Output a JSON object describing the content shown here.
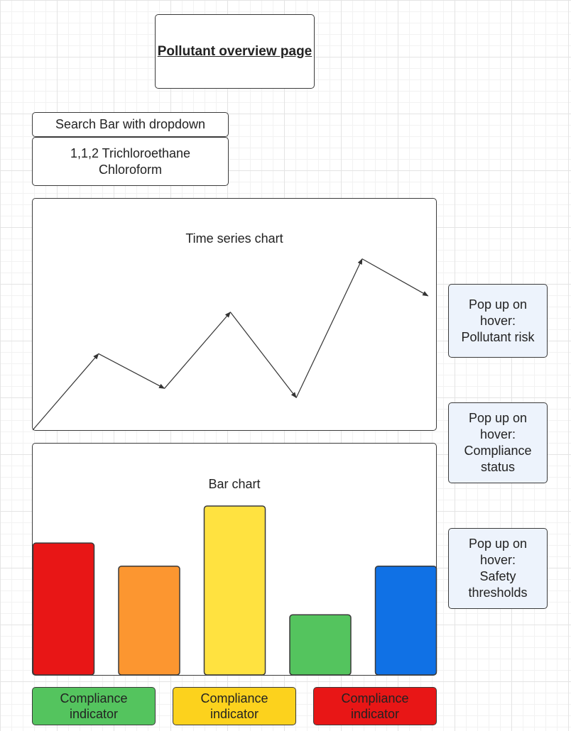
{
  "page_title": "Pollutant overview page",
  "search": {
    "label": "Search Bar with dropdown",
    "options": [
      "1,1,2 Trichloroethane",
      "Chloroform"
    ]
  },
  "time_series": {
    "title": "Time series chart"
  },
  "bar_chart": {
    "title": "Bar chart"
  },
  "popups": [
    {
      "lines": [
        "Pop up on",
        "hover:",
        "Pollutant risk"
      ]
    },
    {
      "lines": [
        "Pop up on",
        "hover:",
        "Compliance",
        "status"
      ]
    },
    {
      "lines": [
        "Pop up on",
        "hover:",
        "Safety",
        "thresholds"
      ]
    }
  ],
  "indicators": [
    {
      "lines": [
        "Compliance",
        "indicator"
      ],
      "color": "#54c45e"
    },
    {
      "lines": [
        "Compliance",
        "indicator"
      ],
      "color": "#fcd21d"
    },
    {
      "lines": [
        "Compliance",
        "indicator"
      ],
      "color": "#e81616"
    }
  ],
  "chart_data": [
    {
      "type": "line",
      "title": "Time series chart",
      "x": [
        0,
        1,
        2,
        3,
        4,
        5,
        6
      ],
      "y": [
        0,
        33,
        18,
        51,
        14,
        74,
        58
      ],
      "xlim": [
        0,
        6.1
      ],
      "ylim": [
        0,
        100
      ],
      "arrows": true
    },
    {
      "type": "bar",
      "title": "Bar chart",
      "categories": [
        "",
        "",
        "",
        "",
        ""
      ],
      "values": [
        57,
        47,
        73,
        26,
        47
      ],
      "colors": [
        "#e81616",
        "#fc9630",
        "#ffe240",
        "#54c45e",
        "#1071e5"
      ],
      "ylim": [
        0,
        100
      ]
    }
  ]
}
